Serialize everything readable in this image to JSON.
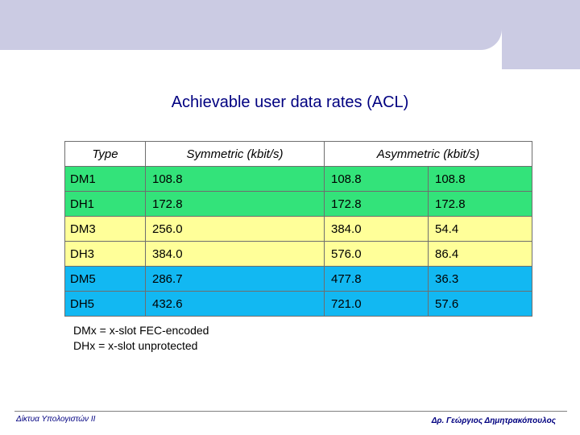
{
  "slide": {
    "title": "Achievable user data rates (ACL)"
  },
  "table": {
    "headers": {
      "type": "Type",
      "symmetric": "Symmetric (kbit/s)",
      "asymmetric": "Asymmetric (kbit/s)"
    },
    "rows": [
      {
        "type": "DM1",
        "symmetric": "108.8",
        "asym_a": "108.8",
        "asym_b": "108.8"
      },
      {
        "type": "DH1",
        "symmetric": "172.8",
        "asym_a": "172.8",
        "asym_b": "172.8"
      },
      {
        "type": "DM3",
        "symmetric": "256.0",
        "asym_a": "384.0",
        "asym_b": "54.4"
      },
      {
        "type": "DH3",
        "symmetric": "384.0",
        "asym_a": "576.0",
        "asym_b": "86.4"
      },
      {
        "type": "DM5",
        "symmetric": "286.7",
        "asym_a": "477.8",
        "asym_b": "36.3"
      },
      {
        "type": "DH5",
        "symmetric": "432.6",
        "asym_a": "721.0",
        "asym_b": "57.6"
      }
    ],
    "colors": {
      "slot1": "#33e37a",
      "slot3": "#ffff99",
      "slot5": "#12b8f2"
    }
  },
  "notes": {
    "line1": "DMx = x-slot FEC-encoded",
    "line2": "DHx = x-slot unprotected"
  },
  "footer": {
    "left": "Δίκτυα Υπολογιστών ΙΙ",
    "right": "Δρ. Γεώργιος Δημητρακόπουλος"
  }
}
